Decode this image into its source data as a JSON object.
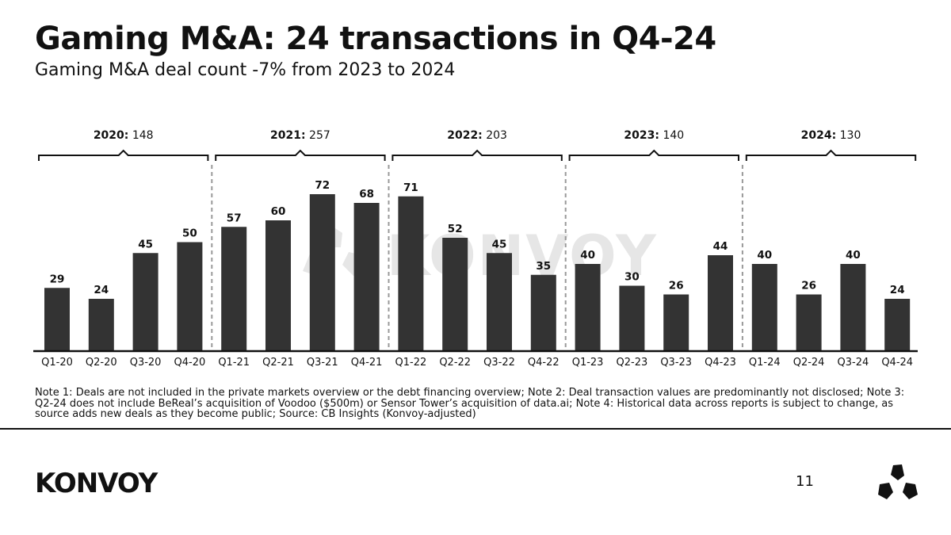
{
  "header": {
    "title": "Gaming M&A: 24 transactions in Q4-24",
    "subtitle": "Gaming M&A deal count -7% from 2023 to 2024"
  },
  "chart_data": {
    "type": "bar",
    "title": "Gaming M&A: 24 transactions in Q4-24",
    "subtitle": "Gaming M&A deal count -7% from 2023 to 2024",
    "xlabel": "",
    "ylabel": "",
    "ylim": [
      0,
      80
    ],
    "grid": false,
    "categories": [
      "Q1-20",
      "Q2-20",
      "Q3-20",
      "Q4-20",
      "Q1-21",
      "Q2-21",
      "Q3-21",
      "Q4-21",
      "Q1-22",
      "Q2-22",
      "Q3-22",
      "Q4-22",
      "Q1-23",
      "Q2-23",
      "Q3-23",
      "Q4-23",
      "Q1-24",
      "Q2-24",
      "Q3-24",
      "Q4-24"
    ],
    "values": [
      29,
      24,
      45,
      50,
      57,
      60,
      72,
      68,
      71,
      52,
      45,
      35,
      40,
      30,
      26,
      44,
      40,
      26,
      40,
      24
    ],
    "year_groups": [
      {
        "year": "2020:",
        "total": "148"
      },
      {
        "year": "2021:",
        "total": "257"
      },
      {
        "year": "2022:",
        "total": "203"
      },
      {
        "year": "2023:",
        "total": "140"
      },
      {
        "year": "2024:",
        "total": "130"
      }
    ],
    "watermark": "KONVOY"
  },
  "footer": {
    "notes": "Note 1: Deals are not included in the private markets overview or the debt financing overview; Note 2: Deal transaction values are predominantly not disclosed; Note 3: Q2-24 does not include BeReal’s acquisition of Voodoo ($500m) or Sensor Tower’s acquisition of data.ai; Note 4: Historical data across reports is subject to change, as source adds new deals as they become public; Source: CB Insights (Konvoy-adjusted)",
    "logo_text": "KONVOY",
    "page_number": "11"
  },
  "colors": {
    "bar": "#333333",
    "axis": "#111111",
    "divider": "#999999",
    "watermark": "#e6e6e6"
  }
}
